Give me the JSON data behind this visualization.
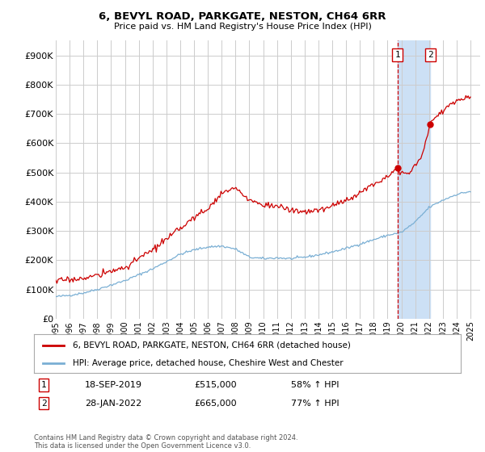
{
  "title": "6, BEVYL ROAD, PARKGATE, NESTON, CH64 6RR",
  "subtitle": "Price paid vs. HM Land Registry's House Price Index (HPI)",
  "yticks": [
    0,
    100000,
    200000,
    300000,
    400000,
    500000,
    600000,
    700000,
    800000,
    900000
  ],
  "ytick_labels": [
    "£0",
    "£100K",
    "£200K",
    "£300K",
    "£400K",
    "£500K",
    "£600K",
    "£700K",
    "£800K",
    "£900K"
  ],
  "ylim": [
    0,
    950000
  ],
  "xtick_years": [
    1995,
    1996,
    1997,
    1998,
    1999,
    2000,
    2001,
    2002,
    2003,
    2004,
    2005,
    2006,
    2007,
    2008,
    2009,
    2010,
    2011,
    2012,
    2013,
    2014,
    2015,
    2016,
    2017,
    2018,
    2019,
    2020,
    2021,
    2022,
    2023,
    2024,
    2025
  ],
  "sale1_x": 2019.72,
  "sale1_y": 515000,
  "sale2_x": 2022.08,
  "sale2_y": 665000,
  "shade_color": "#cce0f5",
  "dashed_color": "#cc0000",
  "red_line_color": "#cc0000",
  "blue_line_color": "#7aafd4",
  "background_color": "#ffffff",
  "grid_color": "#cccccc",
  "legend_label_red": "6, BEVYL ROAD, PARKGATE, NESTON, CH64 6RR (detached house)",
  "legend_label_blue": "HPI: Average price, detached house, Cheshire West and Chester",
  "footnote": "Contains HM Land Registry data © Crown copyright and database right 2024.\nThis data is licensed under the Open Government Licence v3.0.",
  "box1_date": "18-SEP-2019",
  "box1_price": "£515,000",
  "box1_hpi": "58% ↑ HPI",
  "box2_date": "28-JAN-2022",
  "box2_price": "£665,000",
  "box2_hpi": "77% ↑ HPI"
}
